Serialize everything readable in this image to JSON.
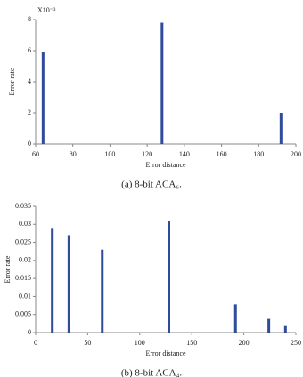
{
  "chart_data": [
    {
      "type": "bar",
      "annotation": "X10⁻³",
      "xlabel": "Error distance",
      "ylabel": "Error rate",
      "x": [
        64,
        128,
        192
      ],
      "values": [
        5.9,
        7.8,
        2
      ],
      "color": "#2f4b9b",
      "xlim": [
        60,
        200
      ],
      "xticks": [
        60,
        80,
        100,
        120,
        140,
        160,
        180,
        200
      ],
      "ylim": [
        0,
        8
      ],
      "yticks": [
        0,
        2,
        4,
        6,
        8
      ],
      "grid": false,
      "caption": "(a) 8-bit ACA₆."
    },
    {
      "type": "bar",
      "xlabel": "Error distance",
      "ylabel": "Error rate",
      "x": [
        16,
        32,
        64,
        128,
        192,
        224,
        240
      ],
      "values": [
        0.029,
        0.027,
        0.023,
        0.031,
        0.0078,
        0.0038,
        0.0018
      ],
      "color": "#2f4b9b",
      "xlim": [
        0,
        250
      ],
      "xticks": [
        0,
        50,
        100,
        150,
        200,
        250
      ],
      "ylim": [
        0,
        0.035
      ],
      "yticks": [
        0,
        0.005,
        0.01,
        0.015,
        0.02,
        0.025,
        0.03,
        0.035
      ],
      "grid": false,
      "caption": "(b) 8-bit ACA₄."
    }
  ]
}
